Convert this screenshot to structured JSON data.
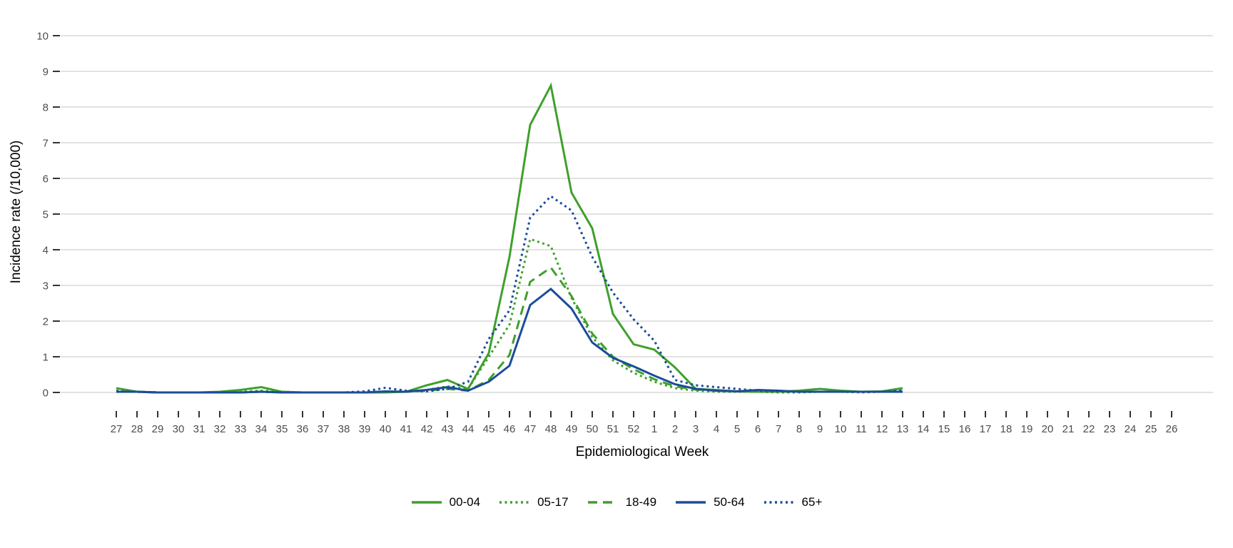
{
  "chart_data": {
    "type": "line",
    "title": "",
    "xlabel": "Epidemiological Week",
    "ylabel": "Incidence rate (/10,000)",
    "x_categories": [
      "27",
      "28",
      "29",
      "30",
      "31",
      "32",
      "33",
      "34",
      "35",
      "36",
      "37",
      "38",
      "39",
      "40",
      "41",
      "42",
      "43",
      "44",
      "45",
      "46",
      "47",
      "48",
      "49",
      "50",
      "51",
      "52",
      "1",
      "2",
      "3",
      "4",
      "5",
      "6",
      "7",
      "8",
      "9",
      "10",
      "11",
      "12",
      "13",
      "14",
      "15",
      "16",
      "17",
      "18",
      "19",
      "20",
      "21",
      "22",
      "23",
      "24",
      "25",
      "26"
    ],
    "ylim": [
      0,
      10
    ],
    "yticks": [
      0,
      1,
      2,
      3,
      4,
      5,
      6,
      7,
      8,
      9,
      10
    ],
    "grid": "horizontal-major-only",
    "legend_position": "bottom-center",
    "colors": {
      "green": "#3FA02C",
      "blue": "#1B4C9A",
      "gridline": "#d9d9d9",
      "tick": "#333333",
      "tick_label": "#4d4d4d"
    },
    "series": [
      {
        "name": "00-04",
        "color": "#3FA02C",
        "style": "solid",
        "values": [
          0.12,
          0.02,
          0,
          0,
          0,
          0.02,
          0.07,
          0.15,
          0.02,
          0,
          0,
          0,
          0,
          0,
          0.02,
          0.2,
          0.35,
          0.1,
          1.1,
          3.8,
          7.5,
          8.6,
          5.6,
          4.6,
          2.2,
          1.35,
          1.2,
          0.7,
          0.1,
          0.07,
          0.03,
          0.02,
          0.02,
          0.05,
          0.1,
          0.05,
          0.02,
          0.03,
          0.12,
          null,
          null,
          null,
          null,
          null,
          null,
          null,
          null,
          null,
          null,
          null,
          null,
          null
        ]
      },
      {
        "name": "05-17",
        "color": "#3FA02C",
        "style": "dotted",
        "values": [
          0.05,
          0.02,
          0,
          0,
          0,
          0,
          0.02,
          0.05,
          0.02,
          0,
          0,
          0,
          0,
          0.02,
          0.02,
          0.07,
          0.17,
          0.1,
          1.0,
          1.9,
          4.3,
          4.1,
          2.65,
          1.55,
          0.9,
          0.55,
          0.3,
          0.12,
          0.05,
          0.02,
          0.02,
          0.02,
          0,
          0,
          0.02,
          0.02,
          0,
          0.02,
          0.05,
          null,
          null,
          null,
          null,
          null,
          null,
          null,
          null,
          null,
          null,
          null,
          null,
          null
        ]
      },
      {
        "name": "18-49",
        "color": "#3FA02C",
        "style": "dashed",
        "values": [
          0.02,
          0.02,
          0,
          0,
          0,
          0,
          0,
          0.02,
          0,
          0,
          0,
          0,
          0,
          0.02,
          0.02,
          0.05,
          0.1,
          0.05,
          0.35,
          1.05,
          3.1,
          3.5,
          2.7,
          1.65,
          1.0,
          0.65,
          0.37,
          0.17,
          0.08,
          0.05,
          0.03,
          0.02,
          0.02,
          0.02,
          0.02,
          0.02,
          0.02,
          0.02,
          0.02,
          null,
          null,
          null,
          null,
          null,
          null,
          null,
          null,
          null,
          null,
          null,
          null,
          null
        ]
      },
      {
        "name": "50-64",
        "color": "#1B4C9A",
        "style": "solid",
        "values": [
          0.02,
          0.02,
          0,
          0,
          0,
          0,
          0,
          0.02,
          0,
          0,
          0,
          0,
          0,
          0.03,
          0.02,
          0.07,
          0.15,
          0.05,
          0.3,
          0.75,
          2.45,
          2.9,
          2.35,
          1.4,
          0.97,
          0.73,
          0.47,
          0.23,
          0.1,
          0.05,
          0.03,
          0.07,
          0.05,
          0.02,
          0.02,
          0.02,
          0.02,
          0.02,
          0.02,
          null,
          null,
          null,
          null,
          null,
          null,
          null,
          null,
          null,
          null,
          null,
          null,
          null
        ]
      },
      {
        "name": "65+",
        "color": "#1B4C9A",
        "style": "dotted",
        "values": [
          0.03,
          0.02,
          0,
          0,
          0,
          0,
          0,
          0.02,
          0,
          0,
          0,
          0,
          0.03,
          0.13,
          0.05,
          0.03,
          0.1,
          0.3,
          1.5,
          2.3,
          4.9,
          5.5,
          5.1,
          3.8,
          2.8,
          2.05,
          1.45,
          0.35,
          0.2,
          0.15,
          0.1,
          0.05,
          0.03,
          0.02,
          0.02,
          0.02,
          0.02,
          0.02,
          0.05,
          null,
          null,
          null,
          null,
          null,
          null,
          null,
          null,
          null,
          null,
          null,
          null,
          null
        ]
      }
    ]
  }
}
